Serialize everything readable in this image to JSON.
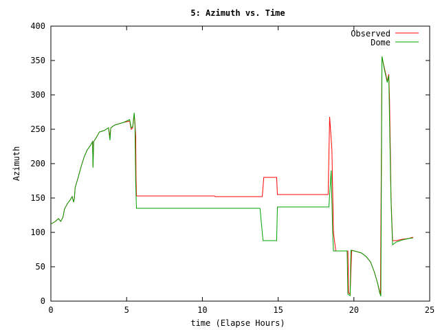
{
  "chart_data": {
    "type": "line",
    "title": "5: Azimuth vs. Time",
    "xlabel": "time (Elapse Hours)",
    "ylabel": "Azimuth",
    "xlim": [
      0,
      25
    ],
    "ylim": [
      0,
      400
    ],
    "x_ticks": [
      0,
      5,
      10,
      15,
      20,
      25
    ],
    "y_ticks": [
      0,
      50,
      100,
      150,
      200,
      250,
      300,
      350,
      400
    ],
    "grid": false,
    "legend_position": "top-right",
    "series": [
      {
        "name": "Observed",
        "color": "#ff0000",
        "points": [
          [
            0,
            112
          ],
          [
            0.3,
            116
          ],
          [
            0.5,
            120
          ],
          [
            0.65,
            116
          ],
          [
            0.8,
            122
          ],
          [
            0.9,
            134
          ],
          [
            1.1,
            142
          ],
          [
            1.3,
            148
          ],
          [
            1.4,
            152
          ],
          [
            1.45,
            148
          ],
          [
            1.5,
            144
          ],
          [
            1.55,
            150
          ],
          [
            1.6,
            165
          ],
          [
            1.8,
            180
          ],
          [
            2.0,
            196
          ],
          [
            2.2,
            210
          ],
          [
            2.4,
            220
          ],
          [
            2.6,
            226
          ],
          [
            2.75,
            232
          ],
          [
            2.78,
            196
          ],
          [
            2.82,
            232
          ],
          [
            3.0,
            238
          ],
          [
            3.2,
            246
          ],
          [
            3.5,
            248
          ],
          [
            3.8,
            252
          ],
          [
            3.9,
            240
          ],
          [
            3.95,
            252
          ],
          [
            4.2,
            256
          ],
          [
            4.5,
            258
          ],
          [
            4.8,
            260
          ],
          [
            5.2,
            262
          ],
          [
            5.3,
            250
          ],
          [
            5.4,
            252
          ],
          [
            5.5,
            272
          ],
          [
            5.55,
            260
          ],
          [
            5.6,
            240
          ],
          [
            5.62,
            180
          ],
          [
            5.65,
            153
          ],
          [
            10.8,
            153
          ],
          [
            10.85,
            152
          ],
          [
            13.95,
            152
          ],
          [
            14.05,
            180
          ],
          [
            14.9,
            180
          ],
          [
            14.95,
            155
          ],
          [
            18.3,
            155
          ],
          [
            18.4,
            268
          ],
          [
            18.55,
            220
          ],
          [
            18.65,
            100
          ],
          [
            18.8,
            73
          ],
          [
            19.6,
            73
          ],
          [
            19.65,
            12
          ],
          [
            19.75,
            10
          ],
          [
            19.85,
            74
          ],
          [
            20.2,
            72
          ],
          [
            20.5,
            70
          ],
          [
            20.8,
            65
          ],
          [
            21.1,
            57
          ],
          [
            21.35,
            42
          ],
          [
            21.55,
            27
          ],
          [
            21.7,
            14
          ],
          [
            21.75,
            10
          ],
          [
            21.85,
            355
          ],
          [
            22.0,
            340
          ],
          [
            22.2,
            320
          ],
          [
            22.3,
            330
          ],
          [
            22.35,
            295
          ],
          [
            22.45,
            150
          ],
          [
            22.55,
            88
          ],
          [
            22.8,
            88
          ],
          [
            23.2,
            90
          ],
          [
            23.6,
            91
          ],
          [
            23.9,
            93
          ]
        ]
      },
      {
        "name": "Dome",
        "color": "#00a000",
        "points": [
          [
            0,
            112
          ],
          [
            0.3,
            116
          ],
          [
            0.5,
            120
          ],
          [
            0.65,
            116
          ],
          [
            0.8,
            122
          ],
          [
            0.9,
            134
          ],
          [
            1.1,
            142
          ],
          [
            1.3,
            148
          ],
          [
            1.4,
            152
          ],
          [
            1.45,
            148
          ],
          [
            1.5,
            144
          ],
          [
            1.55,
            150
          ],
          [
            1.6,
            165
          ],
          [
            1.8,
            180
          ],
          [
            2.0,
            196
          ],
          [
            2.2,
            210
          ],
          [
            2.4,
            220
          ],
          [
            2.6,
            226
          ],
          [
            2.75,
            232
          ],
          [
            2.78,
            194
          ],
          [
            2.82,
            232
          ],
          [
            3.0,
            238
          ],
          [
            3.2,
            246
          ],
          [
            3.5,
            248
          ],
          [
            3.8,
            252
          ],
          [
            3.9,
            234
          ],
          [
            3.95,
            252
          ],
          [
            4.2,
            256
          ],
          [
            4.5,
            258
          ],
          [
            4.8,
            260
          ],
          [
            5.2,
            264
          ],
          [
            5.3,
            252
          ],
          [
            5.4,
            254
          ],
          [
            5.5,
            274
          ],
          [
            5.55,
            255
          ],
          [
            5.6,
            170
          ],
          [
            5.65,
            135
          ],
          [
            13.8,
            135
          ],
          [
            14.0,
            88
          ],
          [
            14.9,
            88
          ],
          [
            14.95,
            137
          ],
          [
            18.35,
            137
          ],
          [
            18.5,
            190
          ],
          [
            18.6,
            100
          ],
          [
            18.65,
            73
          ],
          [
            19.55,
            73
          ],
          [
            19.6,
            10
          ],
          [
            19.75,
            8
          ],
          [
            19.8,
            74
          ],
          [
            20.2,
            72
          ],
          [
            20.5,
            70
          ],
          [
            20.8,
            65
          ],
          [
            21.1,
            57
          ],
          [
            21.35,
            42
          ],
          [
            21.55,
            27
          ],
          [
            21.7,
            12
          ],
          [
            21.78,
            7
          ],
          [
            21.85,
            356
          ],
          [
            22.0,
            338
          ],
          [
            22.2,
            318
          ],
          [
            22.3,
            328
          ],
          [
            22.4,
            200
          ],
          [
            22.45,
            145
          ],
          [
            22.55,
            82
          ],
          [
            22.8,
            86
          ],
          [
            23.2,
            89
          ],
          [
            23.6,
            91
          ],
          [
            23.9,
            92
          ]
        ]
      }
    ]
  }
}
